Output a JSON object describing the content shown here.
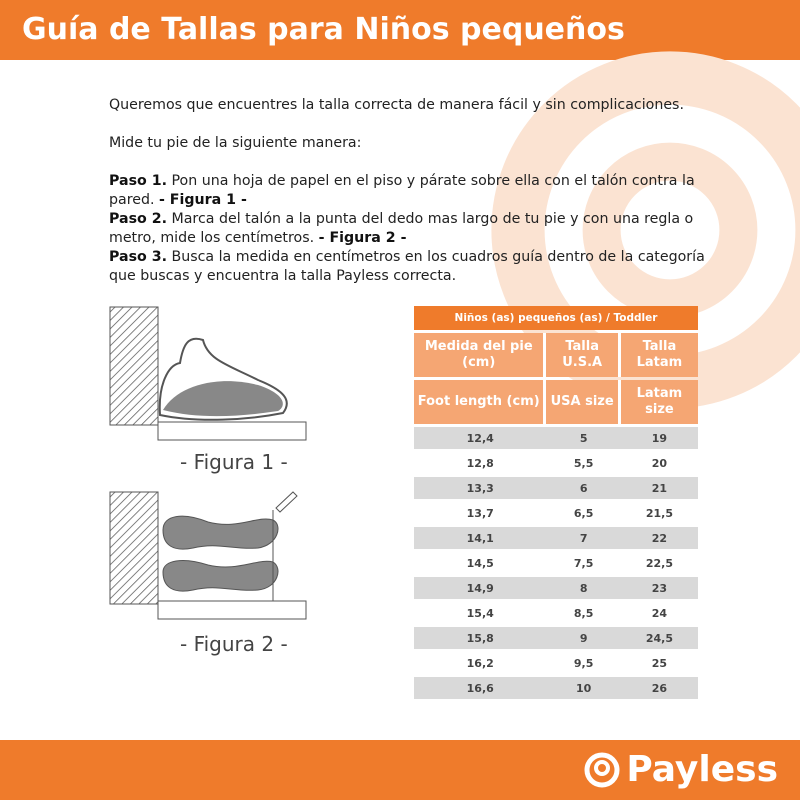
{
  "title": "Guía de Tallas para Niños pequeños",
  "intro": "Queremos que encuentres la talla correcta de manera fácil y sin complicaciones.",
  "measure": "Mide tu pie de la siguiente manera:",
  "steps": [
    {
      "label": "Paso 1.",
      "text": " Pon una hoja de papel en el piso y párate sobre ella con el talón contra la pared. ",
      "fig": "- Figura 1 -"
    },
    {
      "label": "Paso 2.",
      "text": " Marca del talón a la punta del dedo mas largo de tu pie y con una regla o metro, mide los centímetros. ",
      "fig": "- Figura 2 -"
    },
    {
      "label": "Paso 3.",
      "text": " Busca la medida en centímetros en los cuadros guía dentro de la categoría que buscas y encuentra la talla Payless correcta.",
      "fig": ""
    }
  ],
  "figures": [
    "- Figura 1 -",
    "- Figura 2 -"
  ],
  "table": {
    "title": "Niños (as) pequeños (as) / Toddler",
    "header_es": [
      "Medida del pie (cm)",
      "Talla U.S.A",
      "Talla Latam"
    ],
    "header_en": [
      "Foot length (cm)",
      "USA size",
      "Latam size"
    ],
    "rows": [
      [
        "12,4",
        "5",
        "19"
      ],
      [
        "12,8",
        "5,5",
        "20"
      ],
      [
        "13,3",
        "6",
        "21"
      ],
      [
        "13,7",
        "6,5",
        "21,5"
      ],
      [
        "14,1",
        "7",
        "22"
      ],
      [
        "14,5",
        "7,5",
        "22,5"
      ],
      [
        "14,9",
        "8",
        "23"
      ],
      [
        "15,4",
        "8,5",
        "24"
      ],
      [
        "15,8",
        "9",
        "24,5"
      ],
      [
        "16,2",
        "9,5",
        "25"
      ],
      [
        "16,6",
        "10",
        "26"
      ]
    ]
  },
  "brand": "Payless",
  "colors": {
    "accent": "#ef7b2b",
    "header_cell": "#f5a673",
    "row_alt": "#d9d9d9"
  }
}
